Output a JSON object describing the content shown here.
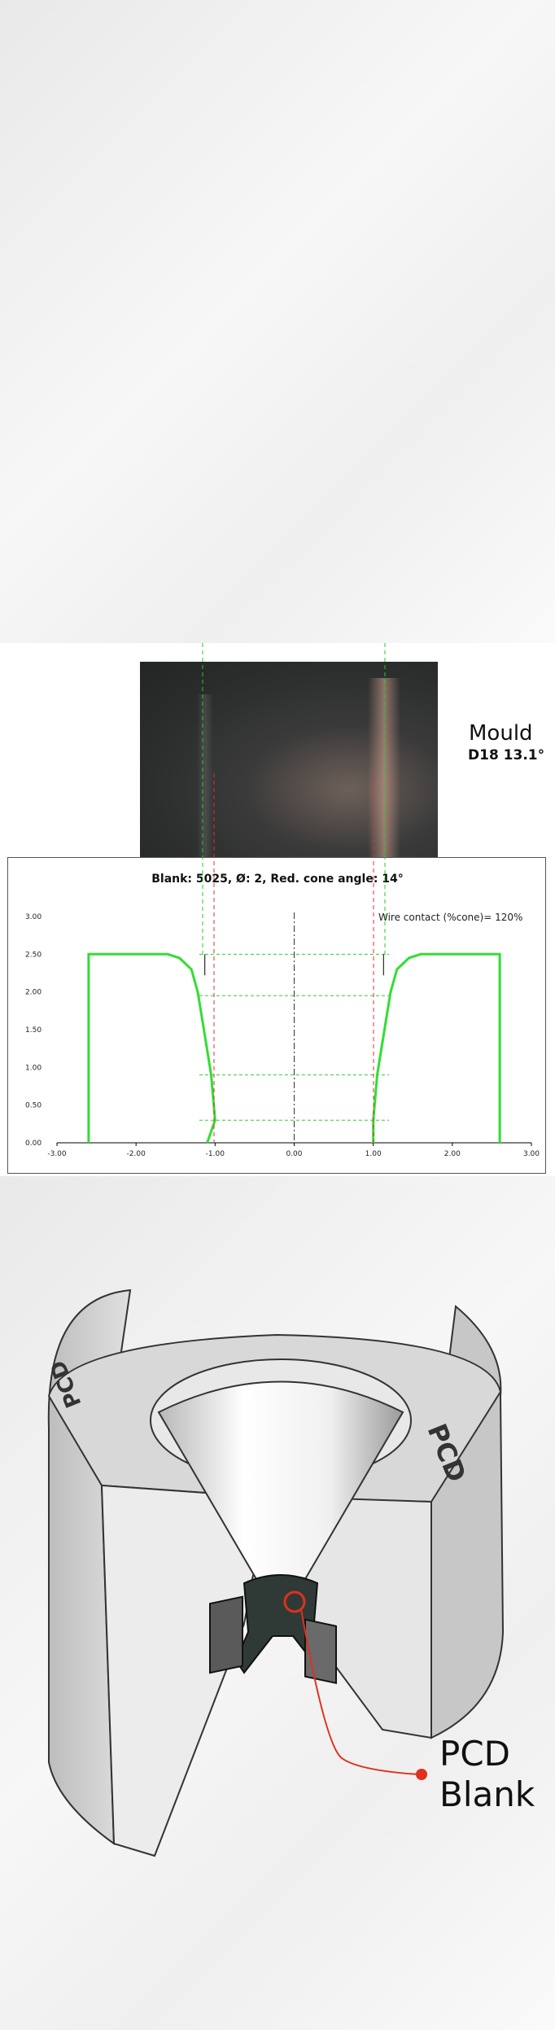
{
  "mould": {
    "title": "Mould",
    "code": "D18 13.1°"
  },
  "chart_data": {
    "type": "line",
    "title": "Blank: 5025,  Ø: 2, Red. cone angle: 14°",
    "annotation": "Wire contact (%cone)= 120%",
    "xlim": [
      -3,
      3
    ],
    "ylim": [
      0,
      3
    ],
    "x_ticks": [
      "-3.00",
      "-2.00",
      "-1.00",
      "0.00",
      "1.00",
      "2.00",
      "3.00"
    ],
    "y_ticks": [
      "0.00",
      "0.50",
      "1.00",
      "1.50",
      "2.00",
      "2.50",
      "3.00"
    ],
    "grid": false,
    "horizontal_guides": [
      2.5,
      1.95,
      0.9,
      0.3
    ],
    "series": [
      {
        "color": "#33dd33",
        "points": [
          [
            -1.1,
            0
          ],
          [
            -1.0,
            0.3
          ],
          [
            -1.05,
            0.9
          ],
          [
            -1.15,
            1.55
          ],
          [
            -1.22,
            2.0
          ],
          [
            -1.3,
            2.3
          ],
          [
            -1.45,
            2.45
          ],
          [
            -1.6,
            2.5
          ],
          [
            -2.6,
            2.5
          ],
          [
            -2.6,
            0
          ],
          [
            null,
            null
          ],
          [
            1.0,
            0
          ],
          [
            1.0,
            0.3
          ],
          [
            1.05,
            0.9
          ],
          [
            1.15,
            1.55
          ],
          [
            1.22,
            2.0
          ],
          [
            1.3,
            2.3
          ],
          [
            1.45,
            2.45
          ],
          [
            1.6,
            2.5
          ],
          [
            2.6,
            2.5
          ],
          [
            2.6,
            0
          ]
        ]
      }
    ]
  },
  "pcd": {
    "side_text": "PCD",
    "label_line1": "PCD",
    "label_line2": "Blank",
    "accent_color": "#e0301e"
  }
}
